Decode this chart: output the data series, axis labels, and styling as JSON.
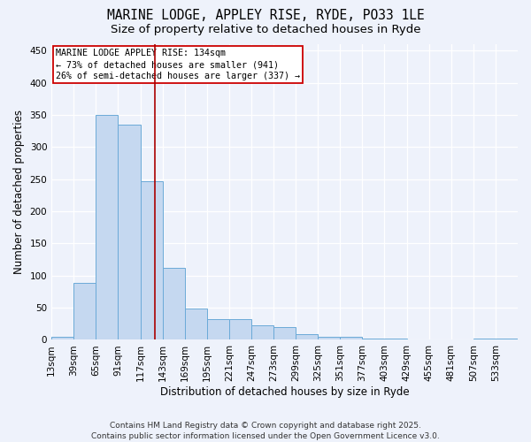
{
  "title_line1": "MARINE LODGE, APPLEY RISE, RYDE, PO33 1LE",
  "title_line2": "Size of property relative to detached houses in Ryde",
  "xlabel": "Distribution of detached houses by size in Ryde",
  "ylabel": "Number of detached properties",
  "categories": [
    "13sqm",
    "39sqm",
    "65sqm",
    "91sqm",
    "117sqm",
    "143sqm",
    "169sqm",
    "195sqm",
    "221sqm",
    "247sqm",
    "273sqm",
    "299sqm",
    "325sqm",
    "351sqm",
    "377sqm",
    "403sqm",
    "429sqm",
    "455sqm",
    "481sqm",
    "507sqm",
    "533sqm"
  ],
  "values": [
    5,
    88,
    350,
    335,
    247,
    112,
    49,
    32,
    32,
    22,
    20,
    9,
    5,
    5,
    2,
    2,
    1,
    1,
    1,
    2,
    2
  ],
  "bar_color": "#c5d8f0",
  "bar_edge_color": "#6baad8",
  "annotation_text_line1": "MARINE LODGE APPLEY RISE: 134sqm",
  "annotation_text_line2": "← 73% of detached houses are smaller (941)",
  "annotation_text_line3": "26% of semi-detached houses are larger (337) →",
  "vline_color": "#aa0000",
  "vline_x": 4.654,
  "annotation_box_edge_color": "#cc0000",
  "annotation_box_face_color": "#ffffff",
  "footer_line1": "Contains HM Land Registry data © Crown copyright and database right 2025.",
  "footer_line2": "Contains public sector information licensed under the Open Government Licence v3.0.",
  "ylim": [
    0,
    460
  ],
  "yticks": [
    0,
    50,
    100,
    150,
    200,
    250,
    300,
    350,
    400,
    450
  ],
  "background_color": "#eef2fb",
  "grid_color": "#ffffff",
  "title_fontsize": 10.5,
  "subtitle_fontsize": 9.5,
  "axis_label_fontsize": 8.5,
  "tick_fontsize": 7.5,
  "annotation_fontsize": 7.2,
  "footer_fontsize": 6.5
}
